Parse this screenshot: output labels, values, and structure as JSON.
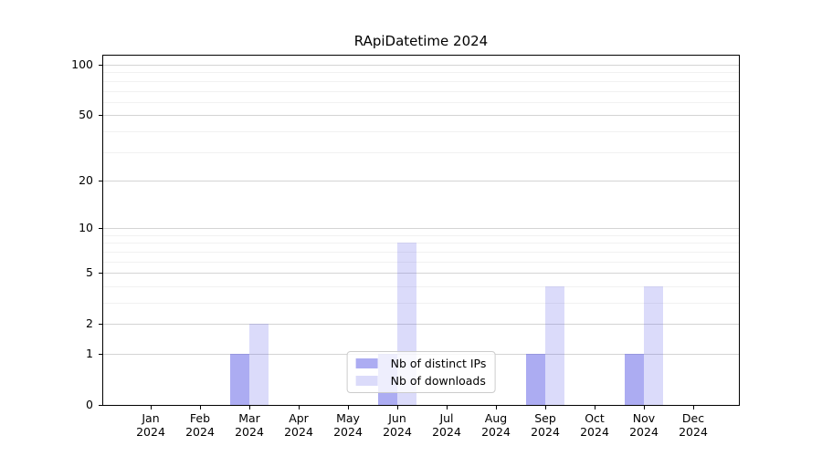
{
  "chart_data": {
    "type": "bar",
    "title": "RApiDatetime 2024",
    "x": {
      "months": [
        "Jan",
        "Feb",
        "Mar",
        "Apr",
        "May",
        "Jun",
        "Jul",
        "Aug",
        "Sep",
        "Oct",
        "Nov",
        "Dec"
      ],
      "year": "2024"
    },
    "y_axis": {
      "scale": "log1p",
      "ticks": [
        0,
        1,
        2,
        5,
        10,
        20,
        50,
        100
      ],
      "minor_gridlines": [
        3,
        4,
        6,
        7,
        8,
        9,
        30,
        40,
        60,
        70,
        80,
        90
      ],
      "range_max": 112
    },
    "series": [
      {
        "name": "Nb of distinct IPs",
        "color": "rgba(90,90,230,0.5)",
        "values": [
          0,
          0,
          1,
          0,
          0,
          1,
          0,
          0,
          1,
          0,
          1,
          0
        ]
      },
      {
        "name": "Nb of downloads",
        "color": "rgba(90,90,230,0.22)",
        "values": [
          0,
          0,
          2,
          0,
          0,
          8,
          0,
          0,
          4,
          0,
          4,
          0
        ]
      }
    ],
    "legend": {
      "position": "lower center",
      "labels": [
        "Nb of distinct IPs",
        "Nb of downloads"
      ]
    },
    "grid": true,
    "colors": {
      "grid_major": "#d4d4d4",
      "grid_minor": "#f1f1f1",
      "spine": "#000000",
      "background": "#ffffff",
      "legend_border": "#cccccc"
    }
  }
}
